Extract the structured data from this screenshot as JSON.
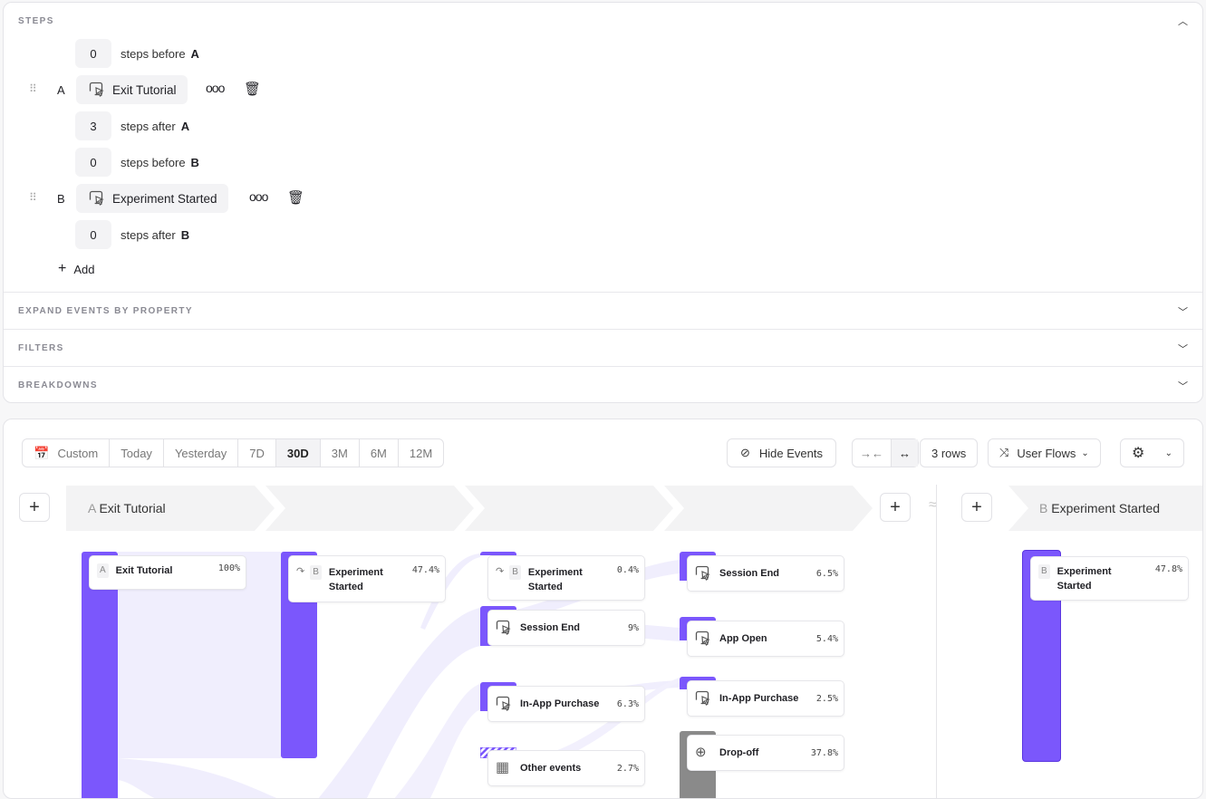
{
  "steps": {
    "title": "STEPS",
    "add_label": "Add",
    "rows": [
      {
        "count": "0",
        "text": "steps before",
        "step": "A"
      },
      {
        "count": "3",
        "text": "steps after",
        "step": "A"
      },
      {
        "count": "0",
        "text": "steps before",
        "step": "B"
      },
      {
        "count": "0",
        "text": "steps after",
        "step": "B"
      }
    ],
    "events": [
      {
        "letter": "A",
        "name": "Exit Tutorial"
      },
      {
        "letter": "B",
        "name": "Experiment Started"
      }
    ]
  },
  "sections": [
    "EXPAND EVENTS BY PROPERTY",
    "FILTERS",
    "BREAKDOWNS"
  ],
  "toolbar": {
    "dates": [
      "Custom",
      "Today",
      "Yesterday",
      "7D",
      "30D",
      "3M",
      "6M",
      "12M"
    ],
    "selected_date": "30D",
    "hide_events": "Hide Events",
    "rows": "3 rows",
    "view": "User Flows"
  },
  "flow": {
    "headers": [
      {
        "letter": "A",
        "name": "Exit Tutorial"
      },
      {
        "letter": "B",
        "name": "Experiment Started"
      }
    ],
    "accent": "#7b57fc",
    "dropoff": "#8a8a8a",
    "nodes": [
      {
        "badge": "A",
        "name": "Exit Tutorial",
        "pct": "100%"
      },
      {
        "badge": "B",
        "name": "Experiment Started",
        "pct": "47.4%"
      },
      {
        "badge": "B",
        "name": "Experiment Started",
        "pct": "0.4%"
      },
      {
        "name": "Session End",
        "pct": "9%"
      },
      {
        "name": "In-App Purchase",
        "pct": "6.3%"
      },
      {
        "name": "Other events",
        "pct": "2.7%"
      },
      {
        "name": "Session End",
        "pct": "6.5%"
      },
      {
        "name": "App Open",
        "pct": "5.4%"
      },
      {
        "name": "In-App Purchase",
        "pct": "2.5%"
      },
      {
        "name": "Drop-off",
        "pct": "37.8%"
      },
      {
        "badge": "B",
        "name": "Experiment Started",
        "pct": "47.8%"
      }
    ]
  }
}
